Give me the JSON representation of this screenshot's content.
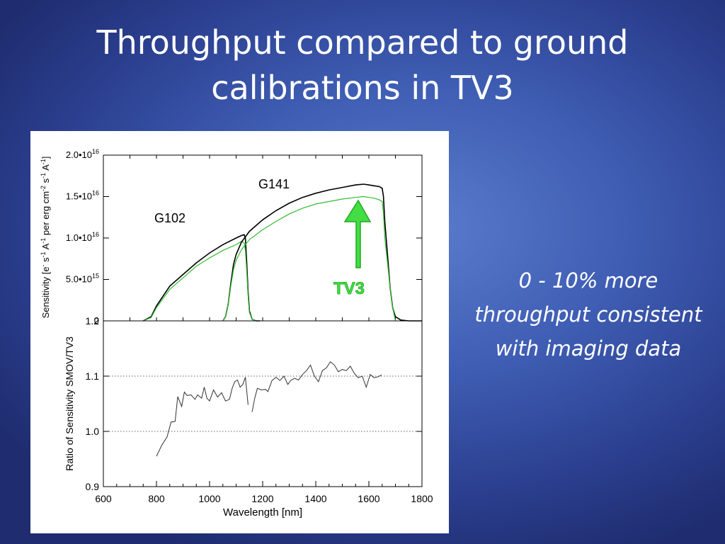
{
  "slide": {
    "title_line1": "Throughput compared to ground",
    "title_line2": "calibrations in TV3",
    "note_line1": "0 - 10% more",
    "note_line2": "throughput consistent",
    "note_line3": "with imaging data"
  },
  "colors": {
    "background": "#3f5eb4",
    "tv3_line": "#33bb33",
    "smov_line": "#000000",
    "arrow": "#44dd44"
  },
  "chart_data": [
    {
      "type": "line",
      "ylabel": "Sensitivity [e s A per erg cm s A]",
      "ylabel_parts": [
        "Sensitivity [e",
        "-",
        " s",
        "-1",
        " A",
        "-1",
        " per erg cm",
        "-2",
        " s",
        "-1",
        " A",
        "-1",
        "]"
      ],
      "xlim": [
        600,
        1800
      ],
      "ylim": [
        0,
        2e+16
      ],
      "yticks": [
        {
          "value": 0,
          "mant": "0",
          "exp": ""
        },
        {
          "value": 5000000000000000.0,
          "mant": "5.0•10",
          "exp": "15"
        },
        {
          "value": 1e+16,
          "mant": "1.0•10",
          "exp": "16"
        },
        {
          "value": 1.5e+16,
          "mant": "1.5•10",
          "exp": "16"
        },
        {
          "value": 2e+16,
          "mant": "2.0•10",
          "exp": "16"
        }
      ],
      "annotations": [
        "G141",
        "G102",
        "TV3"
      ],
      "series": [
        {
          "color": "#000000",
          "x": [
            750,
            780,
            800,
            850,
            900,
            950,
            1000,
            1050,
            1100,
            1120,
            1130,
            1135,
            1140,
            1145,
            1150,
            1160,
            1175,
            1190
          ],
          "y": [
            0,
            500000000000000.0,
            1800000000000000.0,
            4200000000000000.0,
            5600000000000000.0,
            7000000000000000.0,
            8200000000000000.0,
            9200000000000000.0,
            1e+16,
            1.03e+16,
            1.04e+16,
            1e+16,
            7000000000000000.0,
            3500000000000000.0,
            1200000000000000.0,
            200000000000000.0,
            0,
            0
          ]
        },
        {
          "color": "#33bb33",
          "x": [
            750,
            780,
            800,
            850,
            900,
            950,
            1000,
            1050,
            1100,
            1120,
            1130,
            1135,
            1140,
            1145,
            1150,
            1160,
            1175,
            1190
          ],
          "y": [
            0,
            400000000000000.0,
            1600000000000000.0,
            3800000000000000.0,
            5200000000000000.0,
            6600000000000000.0,
            7600000000000000.0,
            8500000000000000.0,
            9200000000000000.0,
            9600000000000000.0,
            9400000000000000.0,
            8500000000000000.0,
            6000000000000000.0,
            3000000000000000.0,
            1000000000000000.0,
            200000000000000.0,
            0,
            0
          ]
        },
        {
          "color": "#000000",
          "x": [
            1050,
            1060,
            1070,
            1080,
            1090,
            1100,
            1120,
            1150,
            1200,
            1250,
            1300,
            1350,
            1400,
            1450,
            1500,
            1550,
            1580,
            1600,
            1620,
            1640,
            1650,
            1655,
            1660,
            1670,
            1680,
            1690,
            1700,
            1720,
            1750,
            1800
          ],
          "y": [
            0,
            500000000000000.0,
            2000000000000000.0,
            4500000000000000.0,
            6800000000000000.0,
            8000000000000000.0,
            9500000000000000.0,
            1.08e+16,
            1.22e+16,
            1.33e+16,
            1.42e+16,
            1.49e+16,
            1.54e+16,
            1.58e+16,
            1.61e+16,
            1.64e+16,
            1.65e+16,
            1.64e+16,
            1.63e+16,
            1.62e+16,
            1.6e+16,
            1.5e+16,
            1.2e+16,
            8000000000000000.0,
            4000000000000000.0,
            1500000000000000.0,
            500000000000000.0,
            100000000000000.0,
            0,
            0
          ]
        },
        {
          "color": "#33bb33",
          "x": [
            1050,
            1060,
            1070,
            1080,
            1090,
            1100,
            1120,
            1150,
            1200,
            1250,
            1300,
            1350,
            1400,
            1450,
            1500,
            1550,
            1580,
            1600,
            1620,
            1640,
            1650,
            1655,
            1660,
            1670,
            1680,
            1690,
            1700
          ],
          "y": [
            0,
            500000000000000.0,
            2000000000000000.0,
            4200000000000000.0,
            6200000000000000.0,
            7300000000000000.0,
            8600000000000000.0,
            9800000000000000.0,
            1.1e+16,
            1.2e+16,
            1.29e+16,
            1.36e+16,
            1.41e+16,
            1.44e+16,
            1.47e+16,
            1.49e+16,
            1.5e+16,
            1.49e+16,
            1.48e+16,
            1.46e+16,
            1.44e+16,
            1.3e+16,
            1e+16,
            7000000000000000.0,
            4000000000000000.0,
            1500000000000000.0,
            0
          ]
        }
      ]
    },
    {
      "type": "line",
      "xlabel": "Wavelength [nm]",
      "ylabel": "Ratio of Sensitivity SMOV/TV3",
      "xlim": [
        600,
        1800
      ],
      "ylim": [
        0.9,
        1.2
      ],
      "xticks": [
        600,
        800,
        1000,
        1200,
        1400,
        1600,
        1800
      ],
      "yticks": [
        "0.9",
        "1.0",
        "1.1",
        "1.2"
      ],
      "reference_lines": [
        1.0,
        1.1
      ],
      "series": [
        {
          "color": "#333333",
          "x": [
            800,
            820,
            840,
            855,
            870,
            880,
            895,
            905,
            915,
            930,
            945,
            955,
            970,
            980,
            990,
            1000,
            1015,
            1030,
            1045,
            1060,
            1075,
            1085,
            1095,
            1105,
            1115,
            1125,
            1135,
            1145
          ],
          "y": [
            0.955,
            0.975,
            0.99,
            1.017,
            1.018,
            1.063,
            1.045,
            1.071,
            1.065,
            1.066,
            1.058,
            1.066,
            1.06,
            1.08,
            1.06,
            1.055,
            1.075,
            1.062,
            1.07,
            1.055,
            1.058,
            1.078,
            1.09,
            1.093,
            1.08,
            1.085,
            1.098,
            1.048
          ]
        },
        {
          "color": "#333333",
          "x": [
            1160,
            1170,
            1180,
            1195,
            1210,
            1220,
            1235,
            1250,
            1265,
            1280,
            1295,
            1305,
            1320,
            1335,
            1350,
            1365,
            1380,
            1395,
            1410,
            1425,
            1440,
            1455,
            1470,
            1485,
            1500,
            1515,
            1530,
            1545,
            1560,
            1575,
            1590,
            1605,
            1620,
            1635,
            1648
          ],
          "y": [
            1.035,
            1.06,
            1.078,
            1.075,
            1.076,
            1.072,
            1.092,
            1.098,
            1.092,
            1.1,
            1.085,
            1.092,
            1.096,
            1.093,
            1.103,
            1.11,
            1.12,
            1.1,
            1.09,
            1.11,
            1.115,
            1.126,
            1.12,
            1.108,
            1.112,
            1.11,
            1.118,
            1.105,
            1.097,
            1.1,
            1.08,
            1.103,
            1.097,
            1.099,
            1.102
          ]
        }
      ]
    }
  ]
}
